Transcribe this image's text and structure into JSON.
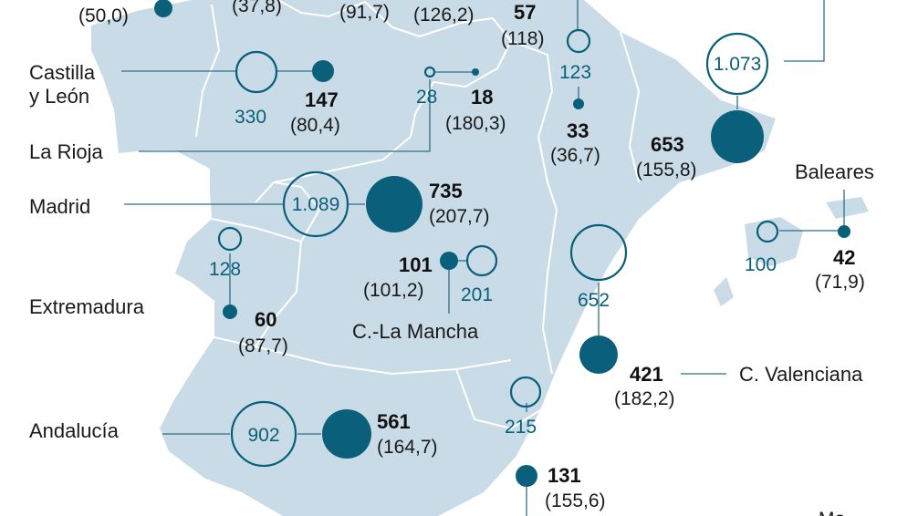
{
  "colors": {
    "land": "#c9dbe6",
    "border": "#ffffff",
    "accent": "#0a5f7a",
    "leader": "#2f6f86",
    "text": "#111111"
  },
  "regions": [
    {
      "id": "galicia",
      "name": "",
      "filled": "",
      "par": "(50,0)",
      "open": ""
    },
    {
      "id": "asturias",
      "name": "",
      "filled": "",
      "par": "(37,8)",
      "open": ""
    },
    {
      "id": "cantabria",
      "name": "",
      "filled": "",
      "par": "(91,7)",
      "open": ""
    },
    {
      "id": "pais-vasco",
      "name": "",
      "filled": "",
      "par": "(126,2)",
      "open": ""
    },
    {
      "id": "navarra",
      "name": "",
      "filled": "57",
      "par": "(118)",
      "open": "123"
    },
    {
      "id": "castilla-y-leon",
      "name": "Castilla\ny León",
      "filled": "147",
      "par": "(80,4)",
      "open": "330"
    },
    {
      "id": "la-rioja",
      "name": "La Rioja",
      "filled": "18",
      "par": "(180,3)",
      "open": "28"
    },
    {
      "id": "aragon",
      "name": "",
      "filled": "33",
      "par": "(36,7)",
      "open": ""
    },
    {
      "id": "cataluna",
      "name": "",
      "filled": "653",
      "par": "(155,8)",
      "open": "1.073"
    },
    {
      "id": "madrid",
      "name": "Madrid",
      "filled": "735",
      "par": "(207,7)",
      "open": "1.089"
    },
    {
      "id": "baleares",
      "name": "Baleares",
      "filled": "42",
      "par": "(71,9)",
      "open": "100"
    },
    {
      "id": "extremadura",
      "name": "Extremadura",
      "filled": "60",
      "par": "(87,7)",
      "open": "128"
    },
    {
      "id": "castilla-la-mancha",
      "name": "C.-La Mancha",
      "filled": "101",
      "par": "(101,2)",
      "open": "201"
    },
    {
      "id": "c-valenciana",
      "name": "C. Valenciana",
      "filled": "421",
      "par": "(182,2)",
      "open": "652"
    },
    {
      "id": "andalucia",
      "name": "Andalucía",
      "filled": "561",
      "par": "(164,7)",
      "open": "902"
    },
    {
      "id": "murcia",
      "name": "",
      "filled": "131",
      "par": "(155,6)",
      "open": "215"
    }
  ],
  "corner_text": "Me"
}
